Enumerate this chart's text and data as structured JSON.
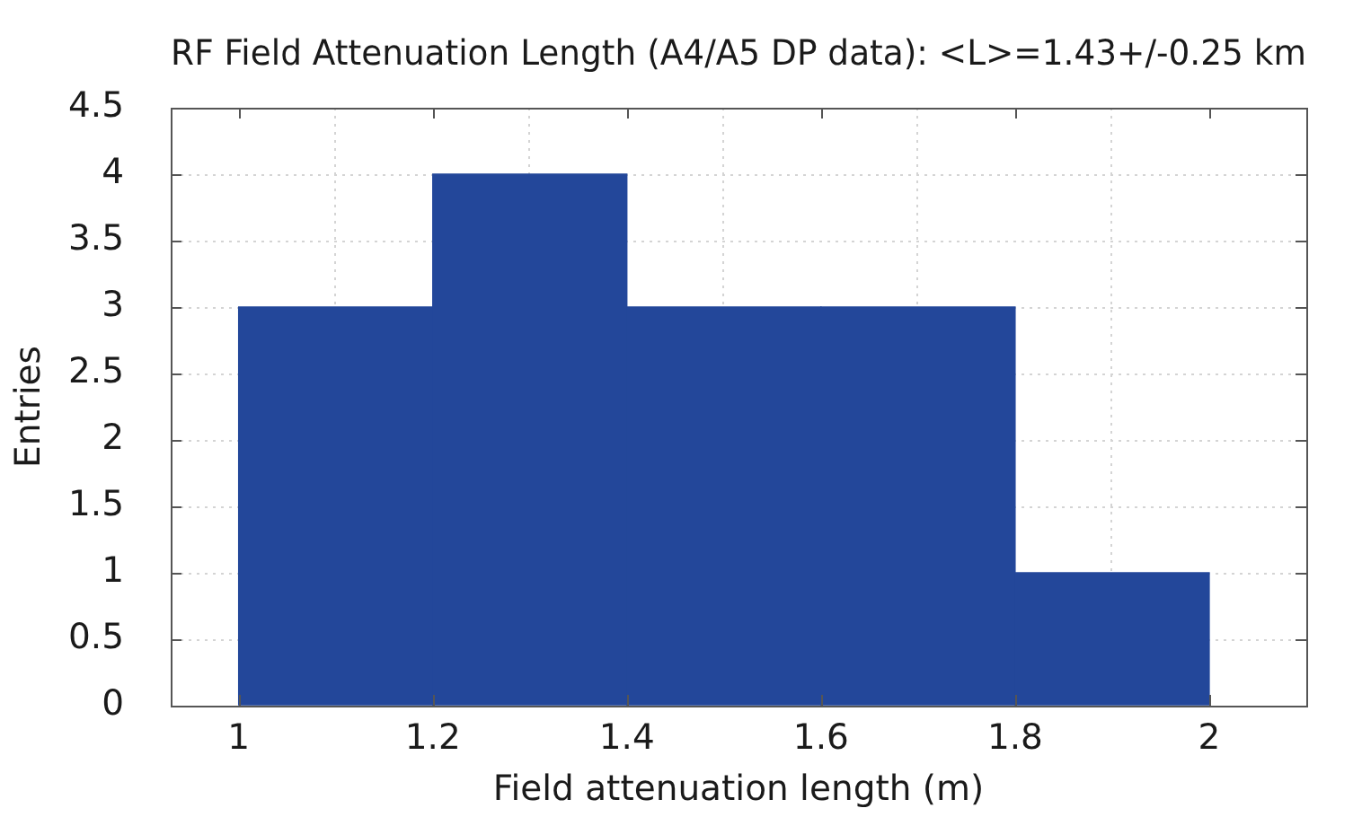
{
  "chart_data": {
    "type": "histogram",
    "title": "RF Field Attenuation Length (A4/A5 DP data): <L>=1.43+/-0.25 km",
    "xlabel": "Field attenuation length (m)",
    "ylabel": "Entries",
    "bins": [
      1,
      1.2,
      1.4,
      1.6,
      1.8,
      2
    ],
    "values": [
      3,
      4,
      3,
      3,
      1
    ],
    "color": "#23479a",
    "xlim": [
      0.93,
      2.1
    ],
    "ylim": [
      0,
      4.5
    ],
    "xticks": [
      1,
      1.2,
      1.4,
      1.6,
      1.8,
      2
    ],
    "yticks": [
      0,
      0.5,
      1,
      1.5,
      2,
      2.5,
      3,
      3.5,
      4,
      4.5
    ],
    "grid": true
  }
}
